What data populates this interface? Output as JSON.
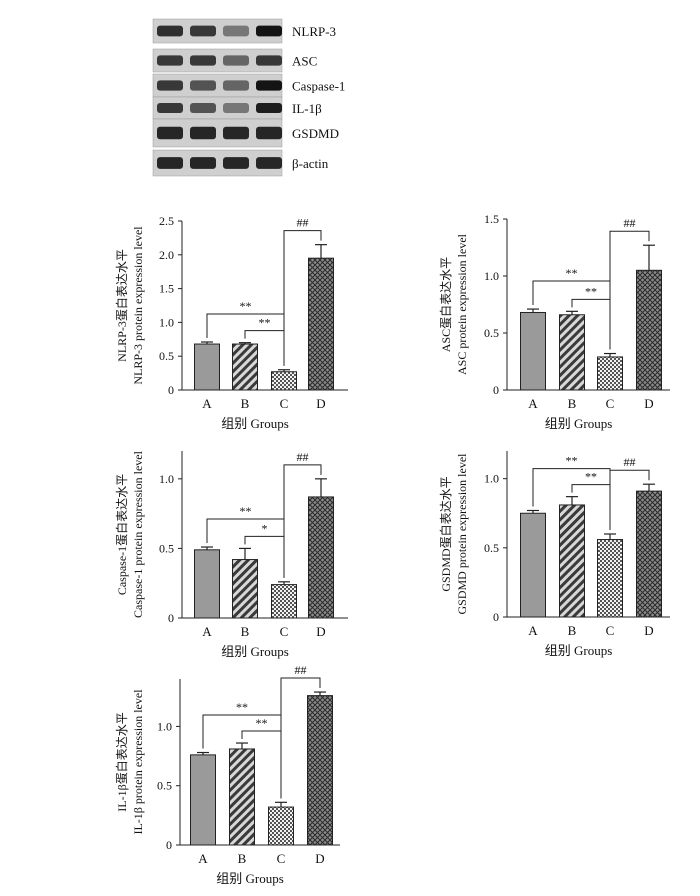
{
  "blot": {
    "labels": [
      "NLRP-3",
      "ASC",
      "Caspase-1",
      "IL-1β",
      "GSDMD",
      "β-actin"
    ],
    "band_intensity": [
      [
        0.85,
        0.8,
        0.45,
        1.0
      ],
      [
        0.8,
        0.8,
        0.55,
        0.8
      ],
      [
        0.8,
        0.65,
        0.55,
        1.0
      ],
      [
        0.8,
        0.65,
        0.45,
        0.95
      ],
      [
        0.9,
        0.9,
        0.9,
        0.9
      ],
      [
        0.9,
        0.9,
        0.9,
        0.9
      ]
    ]
  },
  "colors": {
    "bar_A": "#9a9a9a",
    "bar_B_fill": "#5a5a5a",
    "bar_C_fill": "#e0e0e0",
    "bar_D_fill": "#6a6a6a",
    "outline": "#222222"
  },
  "chart_data": [
    {
      "type": "bar",
      "ylabel_cn": "NLRP-3蛋白表达水平",
      "ylabel_en": "NLRP-3 protein expression level",
      "xlabel": "组别 Groups",
      "categories": [
        "A",
        "B",
        "C",
        "D"
      ],
      "values": [
        0.68,
        0.68,
        0.27,
        1.95
      ],
      "errors": [
        0.03,
        0.02,
        0.03,
        0.2
      ],
      "ylim": [
        0,
        2.5
      ],
      "yticks": [
        "0",
        "0.5",
        "1.0",
        "1.5",
        "2.0",
        "2.5"
      ],
      "significance": [
        {
          "from": "A",
          "to": "C",
          "label": "**"
        },
        {
          "from": "B",
          "to": "C",
          "label": "**"
        },
        {
          "from": "C",
          "to": "D",
          "label": "##"
        }
      ]
    },
    {
      "type": "bar",
      "ylabel_cn": "ASC蛋白表达水平",
      "ylabel_en": "ASC protein expression level",
      "xlabel": "组别 Groups",
      "categories": [
        "A",
        "B",
        "C",
        "D"
      ],
      "values": [
        0.68,
        0.66,
        0.29,
        1.05
      ],
      "errors": [
        0.03,
        0.03,
        0.03,
        0.22
      ],
      "ylim": [
        0,
        1.5
      ],
      "yticks": [
        "0",
        "0.5",
        "1.0",
        "1.5"
      ],
      "significance": [
        {
          "from": "A",
          "to": "C",
          "label": "**"
        },
        {
          "from": "B",
          "to": "C",
          "label": "**"
        },
        {
          "from": "C",
          "to": "D",
          "label": "##"
        }
      ]
    },
    {
      "type": "bar",
      "ylabel_cn": "Caspase-1蛋白表达水平",
      "ylabel_en": "Caspase-1 protein expression level",
      "xlabel": "组别 Groups",
      "categories": [
        "A",
        "B",
        "C",
        "D"
      ],
      "values": [
        0.49,
        0.42,
        0.24,
        0.87
      ],
      "errors": [
        0.02,
        0.08,
        0.02,
        0.13
      ],
      "ylim": [
        0,
        1.2
      ],
      "yticks": [
        "0",
        "0.5",
        "1.0"
      ],
      "significance": [
        {
          "from": "A",
          "to": "C",
          "label": "**"
        },
        {
          "from": "B",
          "to": "C",
          "label": "*"
        },
        {
          "from": "C",
          "to": "D",
          "label": "##"
        }
      ]
    },
    {
      "type": "bar",
      "ylabel_cn": "GSDMD蛋白表达水平",
      "ylabel_en": "GSDMD protein expression level",
      "xlabel": "组别 Groups",
      "categories": [
        "A",
        "B",
        "C",
        "D"
      ],
      "values": [
        0.75,
        0.81,
        0.56,
        0.91
      ],
      "errors": [
        0.02,
        0.06,
        0.04,
        0.05
      ],
      "ylim": [
        0,
        1.2
      ],
      "yticks": [
        "0",
        "0.5",
        "1.0"
      ],
      "significance": [
        {
          "from": "A",
          "to": "C",
          "label": "**"
        },
        {
          "from": "B",
          "to": "C",
          "label": "**"
        },
        {
          "from": "C",
          "to": "D",
          "label": "##"
        }
      ]
    },
    {
      "type": "bar",
      "ylabel_cn": "IL-1β蛋白表达水平",
      "ylabel_en": "IL-1β protein expression level",
      "xlabel": "组别 Groups",
      "categories": [
        "A",
        "B",
        "C",
        "D"
      ],
      "values": [
        0.76,
        0.81,
        0.32,
        1.26
      ],
      "errors": [
        0.02,
        0.05,
        0.04,
        0.03
      ],
      "ylim": [
        0,
        1.4
      ],
      "yticks": [
        "0",
        "0.5",
        "1.0"
      ],
      "significance": [
        {
          "from": "A",
          "to": "C",
          "label": "**"
        },
        {
          "from": "B",
          "to": "C",
          "label": "**"
        },
        {
          "from": "C",
          "to": "D",
          "label": "##"
        }
      ]
    }
  ]
}
